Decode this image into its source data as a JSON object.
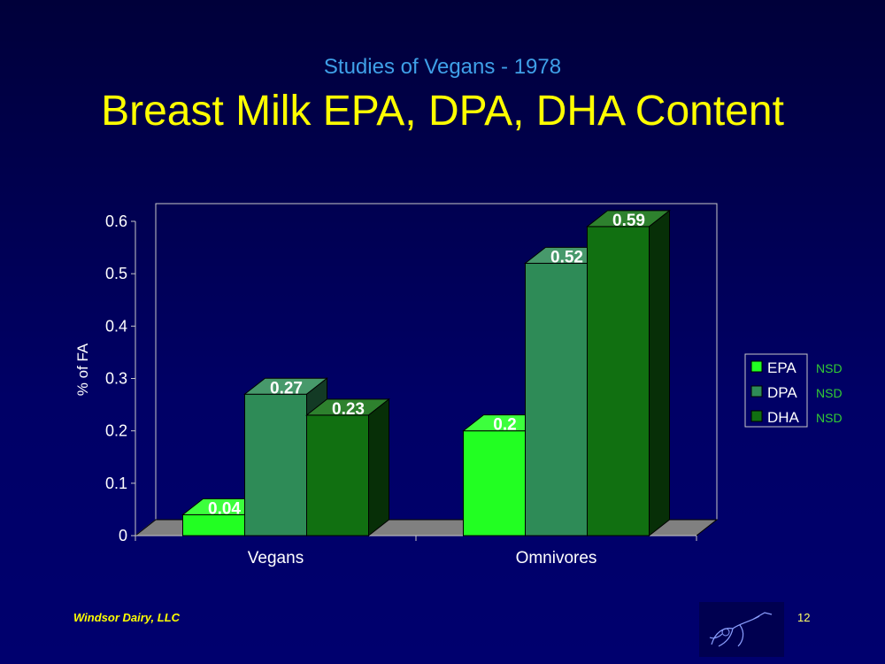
{
  "slide": {
    "subtitle": "Studies of Vegans - 1978",
    "title": "Breast Milk EPA, DPA, DHA Content",
    "footer": "Windsor Dairy, LLC",
    "page_number": "12"
  },
  "chart_data": {
    "type": "bar",
    "style": "3d-clustered",
    "categories": [
      "Vegans",
      "Omnivores"
    ],
    "series": [
      {
        "name": "EPA",
        "values": [
          0.04,
          0.2
        ],
        "color": "#22ff22",
        "note": "NSD"
      },
      {
        "name": "DPA",
        "values": [
          0.27,
          0.52
        ],
        "color": "#2e8b57",
        "note": "NSD"
      },
      {
        "name": "DHA",
        "values": [
          0.23,
          0.59
        ],
        "color": "#117011",
        "note": "NSD"
      }
    ],
    "data_labels": [
      "0.04",
      "0.27",
      "0.23",
      "0.2",
      "0.52",
      "0.59"
    ],
    "ylabel": "% of FA",
    "xlabel": "",
    "ylim": [
      0,
      0.6
    ],
    "yticks": [
      "0",
      "0.1",
      "0.2",
      "0.3",
      "0.4",
      "0.5",
      "0.6"
    ],
    "legend_position": "right",
    "note_color": "#33cc33",
    "grid": false
  }
}
